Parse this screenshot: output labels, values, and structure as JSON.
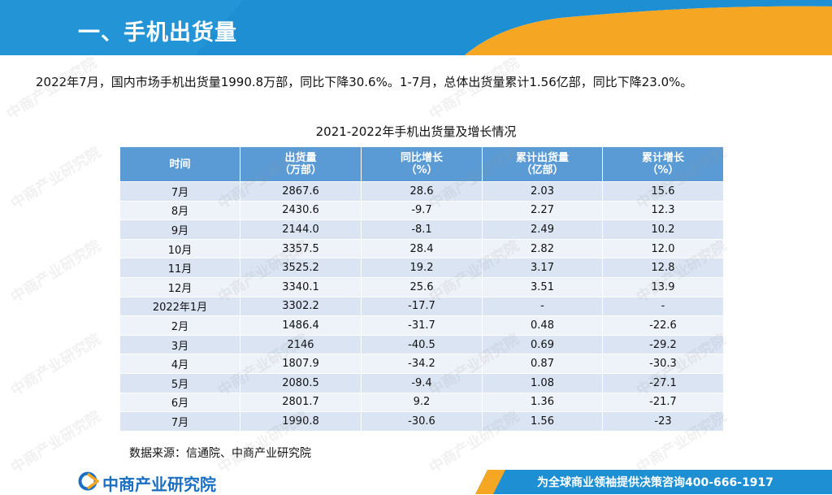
{
  "header": {
    "title": "一、手机出货量",
    "colors": {
      "primary": "#1e8fd2",
      "accent": "#f5a623"
    }
  },
  "summary_text": "2022年7月，国内市场手机出货量1990.8万部，同比下降30.6%。1-7月，总体出货量累计1.56亿部，同比下降23.0%。",
  "table": {
    "title": "2021-2022年手机出货量及增长情况",
    "columns": [
      {
        "label": "时间",
        "unit": ""
      },
      {
        "label": "出货量",
        "unit": "（万部）"
      },
      {
        "label": "同比增长",
        "unit": "（%）"
      },
      {
        "label": "累计出货量",
        "unit": "（亿部）"
      },
      {
        "label": "累计增长",
        "unit": "（%）"
      }
    ],
    "rows": [
      [
        "7月",
        "2867.6",
        "28.6",
        "2.03",
        "15.6"
      ],
      [
        "8月",
        "2430.6",
        "-9.7",
        "2.27",
        "12.3"
      ],
      [
        "9月",
        "2144.0",
        "-8.1",
        "2.49",
        "10.2"
      ],
      [
        "10月",
        "3357.5",
        "28.4",
        "2.82",
        "12.0"
      ],
      [
        "11月",
        "3525.2",
        "19.2",
        "3.17",
        "12.8"
      ],
      [
        "12月",
        "3340.1",
        "25.6",
        "3.51",
        "13.9"
      ],
      [
        "2022年1月",
        "3302.2",
        "-17.7",
        "-",
        "-"
      ],
      [
        "2月",
        "1486.4",
        "-31.7",
        "0.48",
        "-22.6"
      ],
      [
        "3月",
        "2146",
        "-40.5",
        "0.69",
        "-29.2"
      ],
      [
        "4月",
        "1807.9",
        "-34.2",
        "0.87",
        "-30.3"
      ],
      [
        "5月",
        "2080.5",
        "-9.4",
        "1.08",
        "-27.1"
      ],
      [
        "6月",
        "2801.7",
        "9.2",
        "1.36",
        "-21.7"
      ],
      [
        "7月",
        "1990.8",
        "-30.6",
        "1.56",
        "-23"
      ]
    ]
  },
  "source_text": "数据来源：信通院、中商产业研究院",
  "footer": {
    "logo_text": "中商产业研究院",
    "slogan": "为全球商业领袖提供决策咨询400-666-1917",
    "watermark_text": "中商产业研究院"
  }
}
